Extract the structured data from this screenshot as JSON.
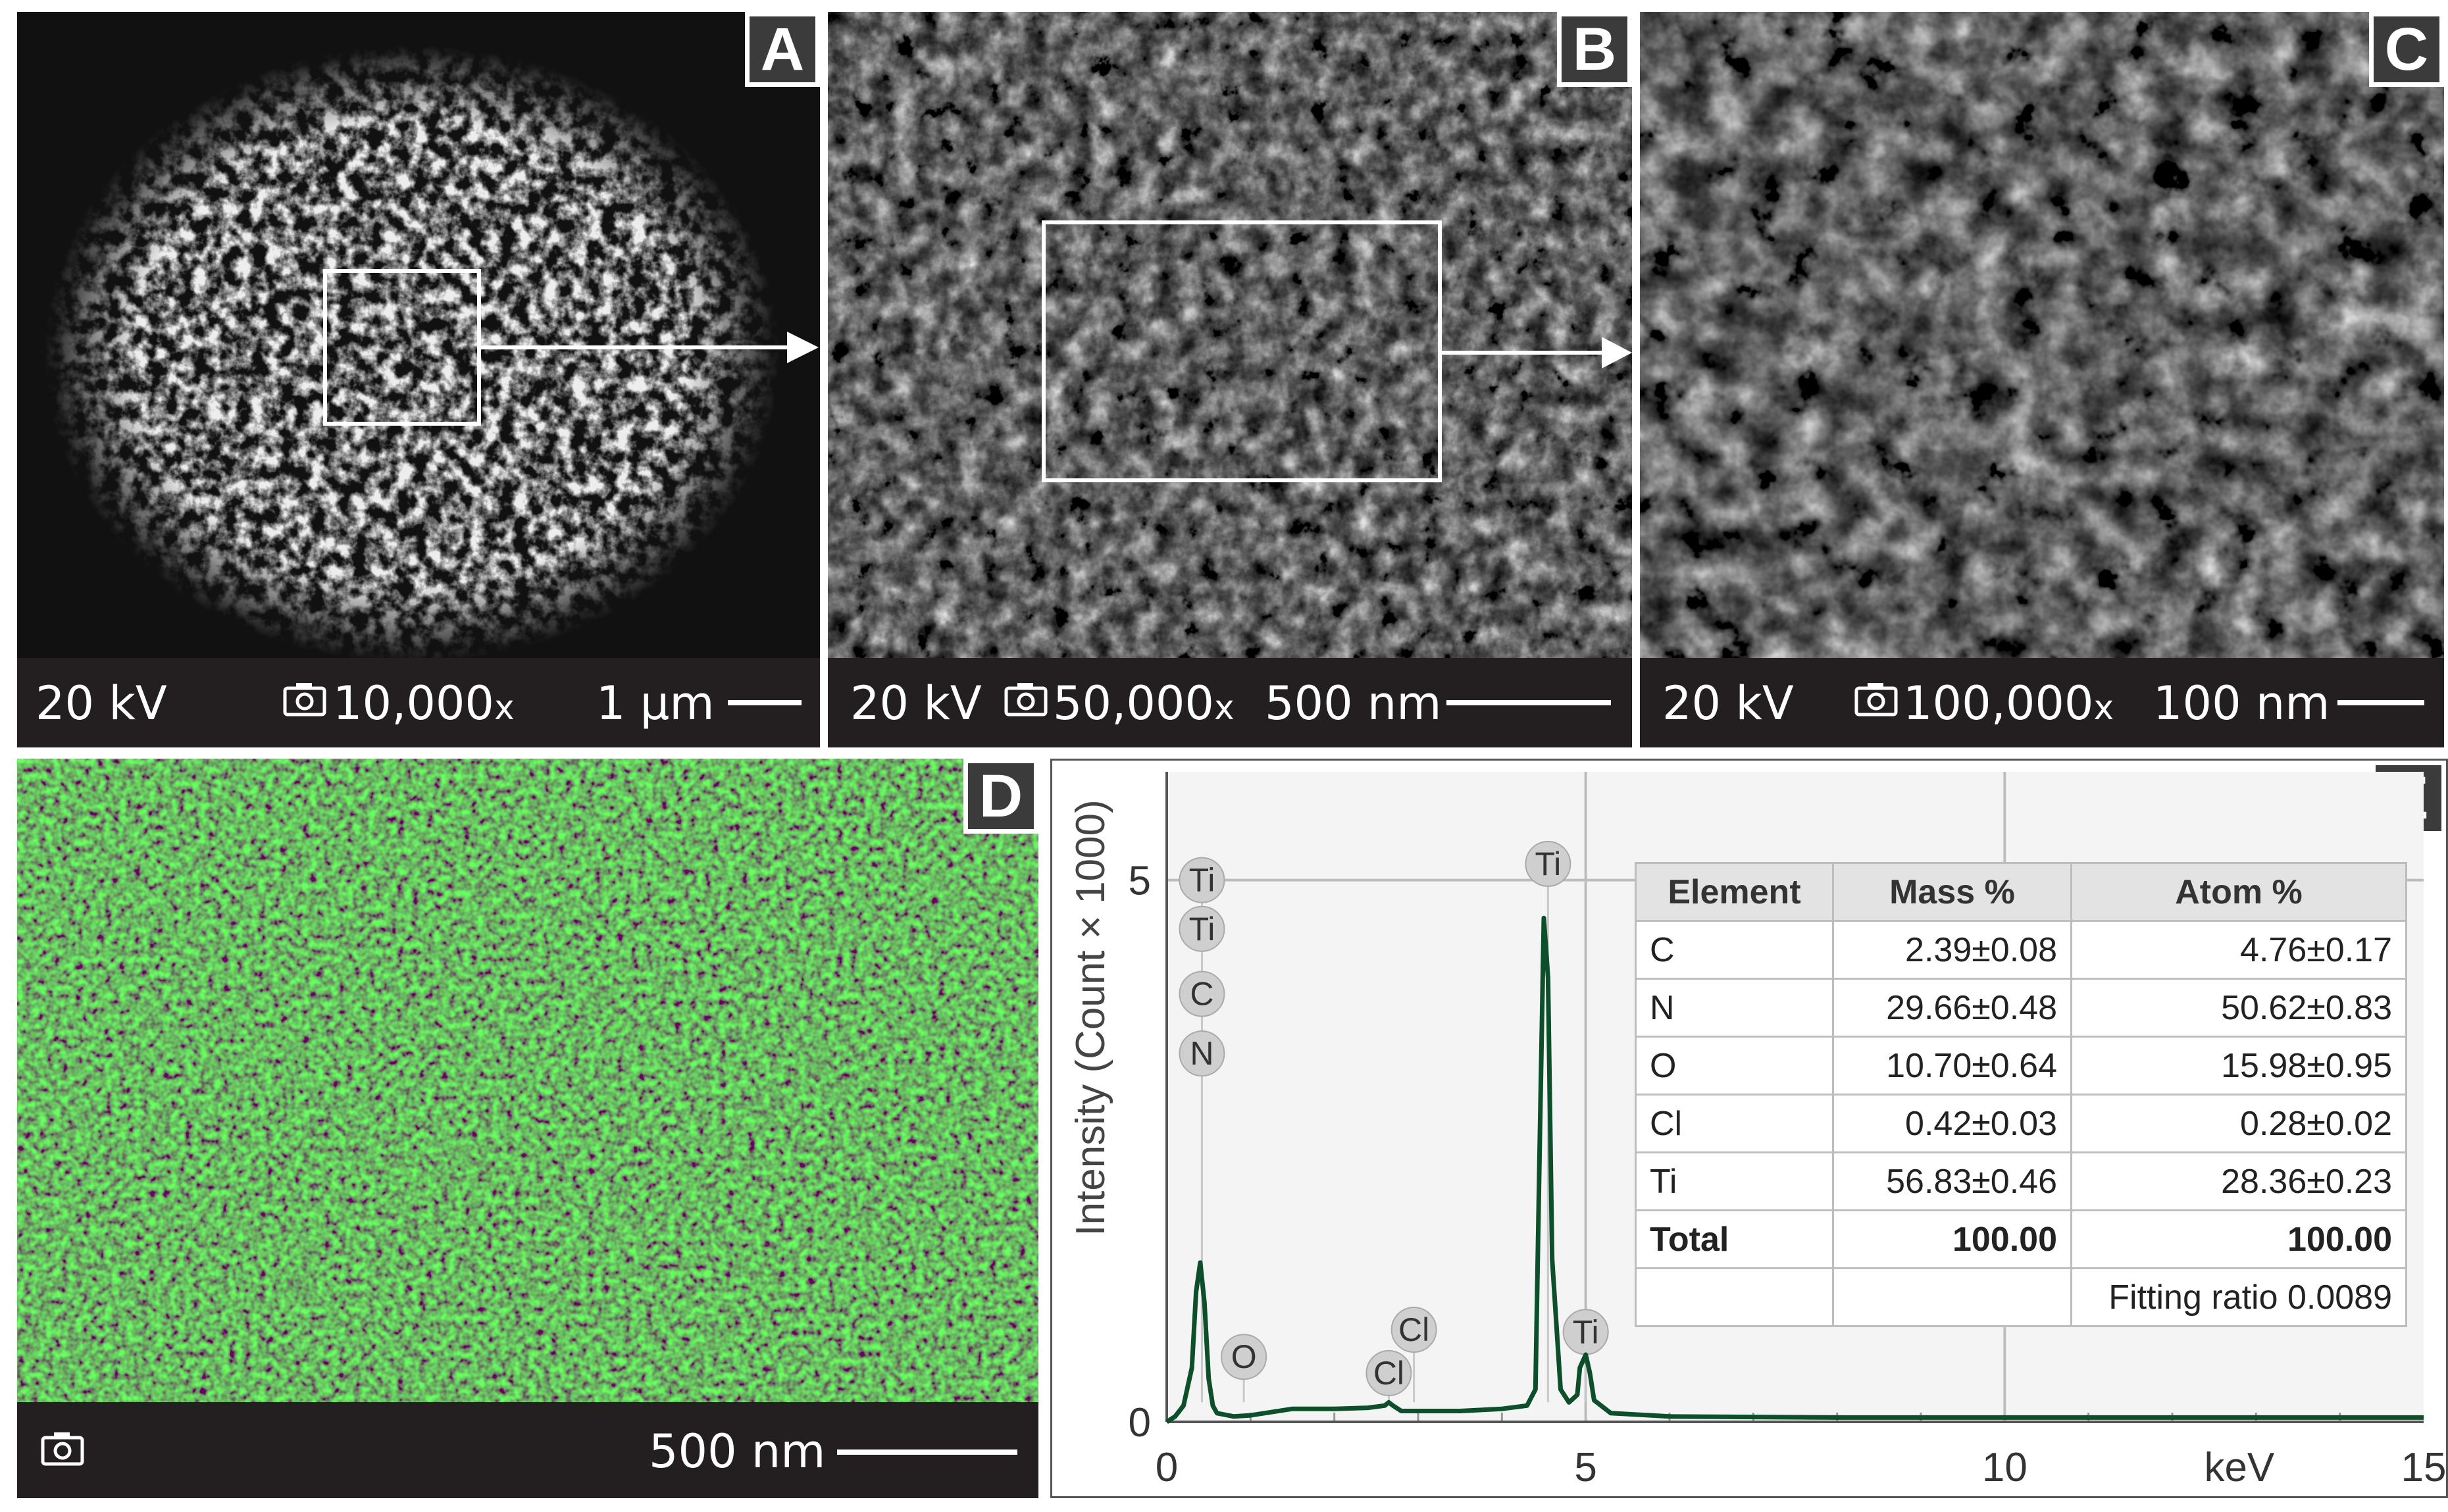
{
  "panels": {
    "a": {
      "letter": "A",
      "voltage": "20 kV",
      "magnification": "10,000",
      "mag_unit": "x",
      "scale": "1 µm"
    },
    "b": {
      "letter": "B",
      "voltage": "20 kV",
      "magnification": "50,000",
      "mag_unit": "x",
      "scale": "500 nm"
    },
    "c": {
      "letter": "C",
      "voltage": "20 kV",
      "magnification": "100,000",
      "mag_unit": "x",
      "scale": "100 nm"
    },
    "d": {
      "letter": "D",
      "scale": "500 nm",
      "map_color": "#2fa82a"
    },
    "e": {
      "letter": "E"
    }
  },
  "icons": {
    "camera": "camera-icon",
    "arrow": "arrow-right-icon"
  },
  "chart_data": {
    "type": "line",
    "title": "",
    "xlabel": "keV",
    "ylabel": "Intensity (Count × 1000)",
    "xlim": [
      0,
      15
    ],
    "ylim": [
      0,
      6
    ],
    "x_ticks": [
      "0",
      "5",
      "10",
      "15"
    ],
    "y_ticks": [
      "0",
      "5"
    ],
    "line_color": "#0d4f2a",
    "series": [
      {
        "x": [
          0,
          0.1,
          0.2,
          0.3,
          0.35,
          0.4,
          0.45,
          0.5,
          0.55,
          0.6,
          0.8,
          1.0,
          1.5,
          2.0,
          2.4,
          2.6,
          2.65,
          2.7,
          2.8,
          3.0,
          3.5,
          4.0,
          4.3,
          4.4,
          4.45,
          4.5,
          4.55,
          4.6,
          4.7,
          4.8,
          4.9,
          4.93,
          5.0,
          5.05,
          5.1,
          5.3,
          6.0,
          8.0,
          10.0,
          12.0,
          15.0
        ],
        "y": [
          0,
          0.05,
          0.15,
          0.5,
          1.2,
          1.47,
          1.1,
          0.4,
          0.15,
          0.08,
          0.05,
          0.06,
          0.12,
          0.12,
          0.13,
          0.15,
          0.18,
          0.15,
          0.1,
          0.1,
          0.1,
          0.12,
          0.15,
          0.3,
          2.5,
          4.65,
          4.1,
          1.5,
          0.3,
          0.18,
          0.25,
          0.5,
          0.62,
          0.45,
          0.2,
          0.08,
          0.05,
          0.04,
          0.04,
          0.04,
          0.04
        ]
      }
    ],
    "peak_labels": [
      {
        "label": "Ti",
        "x": 0.42,
        "y": 5.0
      },
      {
        "label": "Ti",
        "x": 0.42,
        "y": 4.55
      },
      {
        "label": "C",
        "x": 0.42,
        "y": 3.95
      },
      {
        "label": "N",
        "x": 0.42,
        "y": 3.4
      },
      {
        "label": "O",
        "x": 0.92,
        "y": 0.6
      },
      {
        "label": "Cl",
        "x": 2.65,
        "y": 0.45
      },
      {
        "label": "Cl",
        "x": 2.95,
        "y": 0.85
      },
      {
        "label": "Ti",
        "x": 4.55,
        "y": 5.15
      },
      {
        "label": "Ti",
        "x": 5.0,
        "y": 0.83
      }
    ],
    "table": {
      "headers": [
        "Element",
        "Mass %",
        "Atom %"
      ],
      "rows": [
        [
          "C",
          "2.39±0.08",
          "4.76±0.17"
        ],
        [
          "N",
          "29.66±0.48",
          "50.62±0.83"
        ],
        [
          "O",
          "10.70±0.64",
          "15.98±0.95"
        ],
        [
          "Cl",
          "0.42±0.03",
          "0.28±0.02"
        ],
        [
          "Ti",
          "56.83±0.46",
          "28.36±0.23"
        ]
      ],
      "total": [
        "Total",
        "100.00",
        "100.00"
      ],
      "fitting": "Fitting ratio 0.0089"
    }
  }
}
